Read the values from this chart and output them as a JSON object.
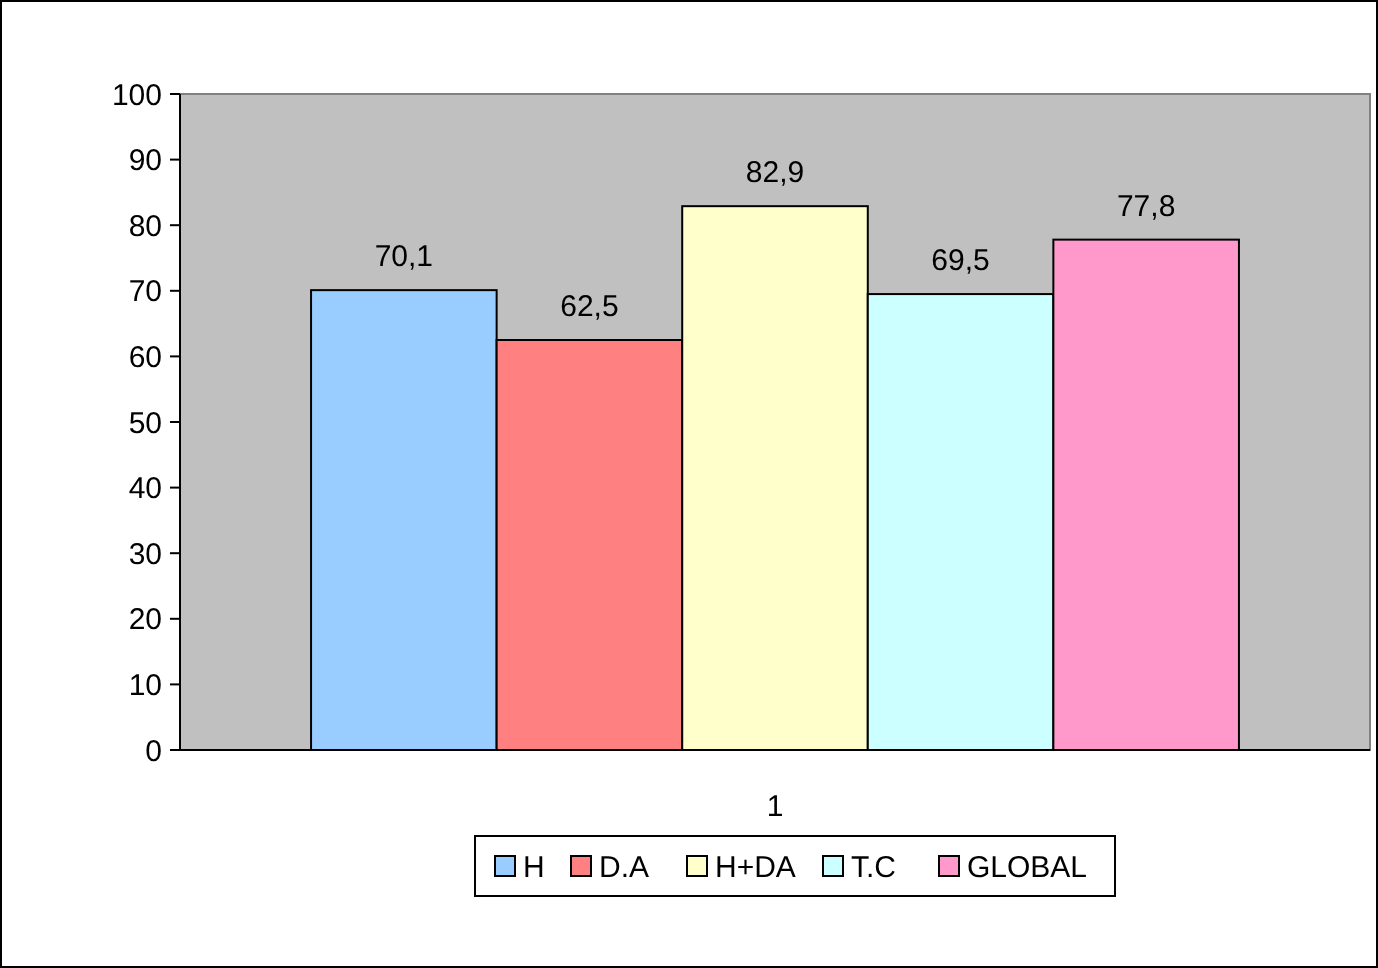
{
  "chart_data": {
    "type": "bar",
    "categories": [
      "1"
    ],
    "series": [
      {
        "name": "H",
        "color": "#99ccff",
        "values": [
          70.1
        ],
        "value_labels": [
          "70,1"
        ]
      },
      {
        "name": "D.A",
        "color": "#ff8080",
        "values": [
          62.5
        ],
        "value_labels": [
          "62,5"
        ]
      },
      {
        "name": "H+DA",
        "color": "#ffffcc",
        "values": [
          82.9
        ],
        "value_labels": [
          "82,9"
        ]
      },
      {
        "name": "T.C",
        "color": "#ccffff",
        "values": [
          69.5
        ],
        "value_labels": [
          "69,5"
        ]
      },
      {
        "name": "GLOBAL",
        "color": "#ff99cc",
        "values": [
          77.8
        ],
        "value_labels": [
          "77,8"
        ]
      }
    ],
    "ylim": [
      0,
      100
    ],
    "yticks": [
      0,
      10,
      20,
      30,
      40,
      50,
      60,
      70,
      80,
      90,
      100
    ],
    "grid": false,
    "legend": "bottom"
  }
}
